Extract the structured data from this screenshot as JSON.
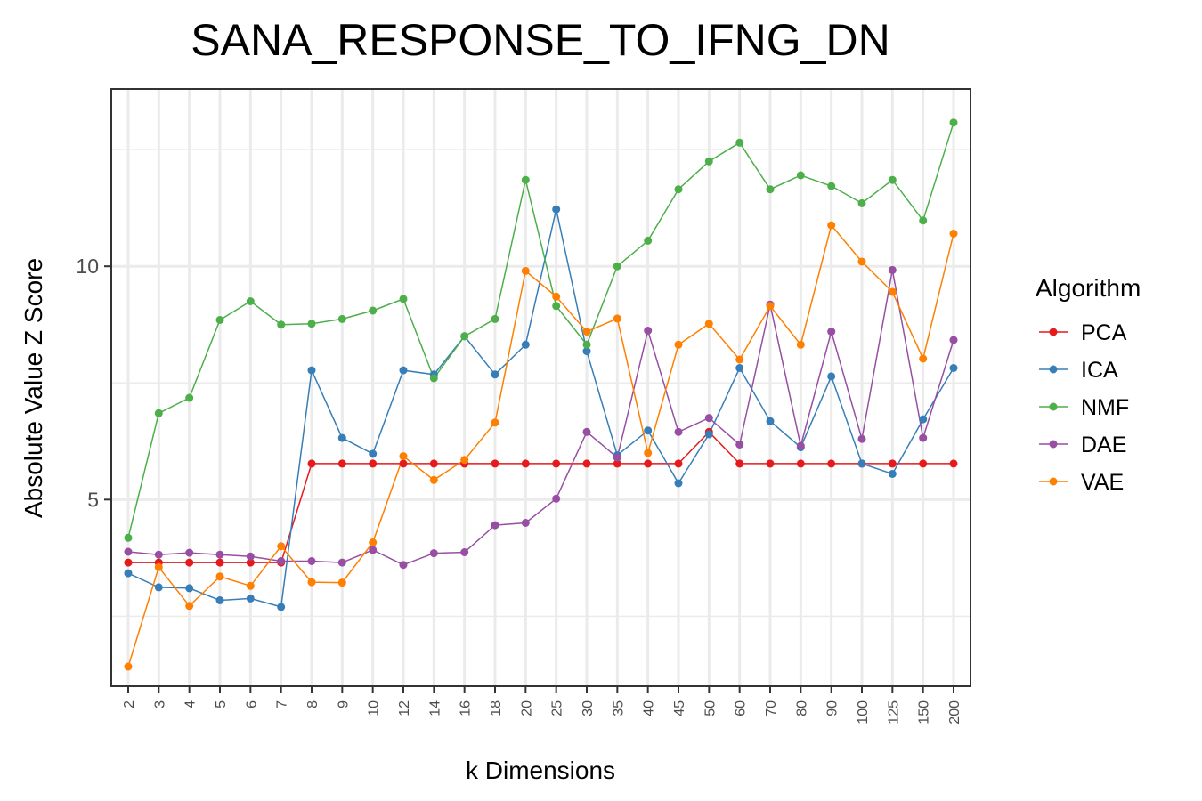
{
  "chart_data": {
    "type": "line",
    "title": "SANA_RESPONSE_TO_IFNG_DN",
    "xlabel": "k Dimensions",
    "ylabel": "Absolute Value Z Score",
    "categories": [
      "2",
      "3",
      "4",
      "5",
      "6",
      "7",
      "8",
      "9",
      "10",
      "12",
      "14",
      "16",
      "18",
      "20",
      "25",
      "30",
      "35",
      "40",
      "45",
      "50",
      "60",
      "70",
      "80",
      "90",
      "100",
      "125",
      "150",
      "200"
    ],
    "ylim": [
      1.0,
      13.8
    ],
    "yticks": [
      5,
      10
    ],
    "grid": true,
    "legend": {
      "title": "Algorithm",
      "position": "right"
    },
    "series": [
      {
        "name": "PCA",
        "color": "#e41a1c",
        "values": [
          3.65,
          3.65,
          3.65,
          3.65,
          3.65,
          3.65,
          5.77,
          5.77,
          5.77,
          5.77,
          5.77,
          5.77,
          5.77,
          5.77,
          5.77,
          5.77,
          5.77,
          5.77,
          5.77,
          6.45,
          5.77,
          5.77,
          5.77,
          5.77,
          5.77,
          5.77,
          5.77,
          5.77
        ]
      },
      {
        "name": "ICA",
        "color": "#377eb8",
        "values": [
          3.42,
          3.12,
          3.1,
          2.84,
          2.88,
          2.7,
          7.77,
          6.32,
          5.98,
          7.77,
          7.68,
          8.5,
          7.68,
          8.32,
          11.22,
          8.18,
          5.95,
          6.48,
          5.35,
          6.4,
          7.82,
          6.68,
          6.12,
          7.64,
          5.77,
          5.55,
          6.72,
          7.82
        ]
      },
      {
        "name": "NMF",
        "color": "#4daf4a",
        "values": [
          4.18,
          6.85,
          7.18,
          8.85,
          9.25,
          8.75,
          8.77,
          8.87,
          9.05,
          9.3,
          7.6,
          8.5,
          8.87,
          11.85,
          9.15,
          8.32,
          10.0,
          10.55,
          11.65,
          12.25,
          12.65,
          11.65,
          11.95,
          11.72,
          11.35,
          11.85,
          10.98,
          13.08
        ]
      },
      {
        "name": "DAE",
        "color": "#984ea3",
        "values": [
          3.88,
          3.82,
          3.86,
          3.82,
          3.78,
          3.68,
          3.68,
          3.65,
          3.92,
          3.6,
          3.85,
          3.87,
          4.45,
          4.5,
          5.02,
          6.45,
          5.9,
          8.62,
          6.45,
          6.75,
          6.18,
          9.18,
          6.15,
          8.6,
          6.3,
          9.92,
          6.32,
          8.42
        ]
      },
      {
        "name": "VAE",
        "color": "#ff7f00",
        "values": [
          1.42,
          3.55,
          2.72,
          3.35,
          3.15,
          4.0,
          3.23,
          3.22,
          4.08,
          5.93,
          5.42,
          5.85,
          6.65,
          9.9,
          9.35,
          8.6,
          8.88,
          6.0,
          8.32,
          8.77,
          8.0,
          9.15,
          8.32,
          10.88,
          10.1,
          9.45,
          8.02,
          10.7
        ]
      }
    ]
  }
}
